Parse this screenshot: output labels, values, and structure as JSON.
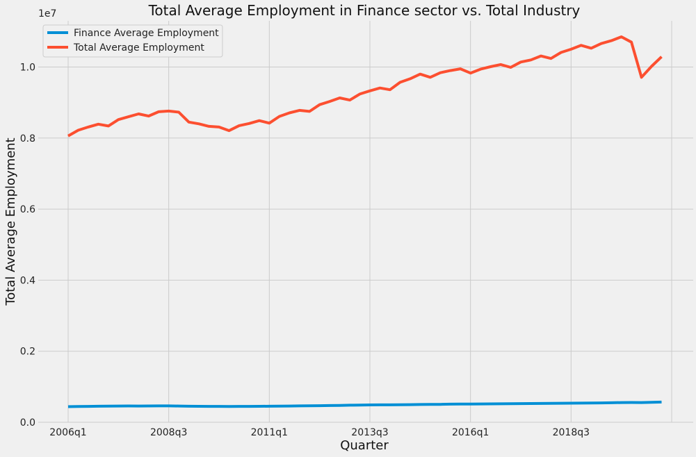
{
  "chart_data": {
    "type": "line",
    "title": "Total Average Employment in Finance sector vs. Total Industry",
    "xlabel": "Quarter",
    "ylabel": "Total Average Employment",
    "y_offset_label": "1e7",
    "ylim": [
      0,
      11300000
    ],
    "yticks": [
      0.0,
      0.2,
      0.4,
      0.6,
      0.8,
      1.0
    ],
    "y_scale_factor": 10000000,
    "grid": true,
    "legend_position": "top-left",
    "xticks": [
      {
        "quarter": "2006q1"
      },
      {
        "quarter": "2008q3"
      },
      {
        "quarter": "2011q1"
      },
      {
        "quarter": "2013q3"
      },
      {
        "quarter": "2016q1"
      },
      {
        "quarter": "2018q3"
      },
      {
        "quarter": "2021q1",
        "label": ""
      }
    ],
    "x": [
      "2006q1",
      "2006q2",
      "2006q3",
      "2006q4",
      "2007q1",
      "2007q2",
      "2007q3",
      "2007q4",
      "2008q1",
      "2008q2",
      "2008q3",
      "2008q4",
      "2009q1",
      "2009q2",
      "2009q3",
      "2009q4",
      "2010q1",
      "2010q2",
      "2010q3",
      "2010q4",
      "2011q1",
      "2011q2",
      "2011q3",
      "2011q4",
      "2012q1",
      "2012q2",
      "2012q3",
      "2012q4",
      "2013q1",
      "2013q2",
      "2013q3",
      "2013q4",
      "2014q1",
      "2014q2",
      "2014q3",
      "2014q4",
      "2015q1",
      "2015q2",
      "2015q3",
      "2015q4",
      "2016q1",
      "2016q2",
      "2016q3",
      "2016q4",
      "2017q1",
      "2017q2",
      "2017q3",
      "2017q4",
      "2018q1",
      "2018q2",
      "2018q3",
      "2018q4",
      "2019q1",
      "2019q2",
      "2019q3",
      "2019q4",
      "2020q1",
      "2020q2",
      "2020q3",
      "2020q4"
    ],
    "series": [
      {
        "name": "Finance Average Employment",
        "color": "#008fd5",
        "values": [
          440000,
          445000,
          448000,
          452000,
          455000,
          458000,
          460000,
          458000,
          460000,
          461000,
          462000,
          458000,
          452000,
          450000,
          448000,
          447000,
          446000,
          447000,
          448000,
          450000,
          452000,
          455000,
          458000,
          461000,
          464000,
          468000,
          472000,
          476000,
          480000,
          484000,
          488000,
          490000,
          490000,
          492000,
          496000,
          500000,
          502000,
          505000,
          510000,
          512000,
          514000,
          516000,
          518000,
          520000,
          522000,
          525000,
          528000,
          530000,
          532000,
          535000,
          538000,
          540000,
          542000,
          545000,
          550000,
          555000,
          558000,
          556000,
          562000,
          568000
        ]
      },
      {
        "name": "Total Average Employment",
        "color": "#fc4f30",
        "values": [
          8060000,
          8220000,
          8310000,
          8390000,
          8340000,
          8520000,
          8600000,
          8680000,
          8620000,
          8740000,
          8760000,
          8730000,
          8450000,
          8400000,
          8330000,
          8310000,
          8210000,
          8350000,
          8410000,
          8490000,
          8420000,
          8610000,
          8710000,
          8780000,
          8750000,
          8940000,
          9030000,
          9130000,
          9070000,
          9240000,
          9330000,
          9410000,
          9360000,
          9570000,
          9670000,
          9800000,
          9710000,
          9840000,
          9900000,
          9950000,
          9830000,
          9940000,
          10010000,
          10070000,
          9990000,
          10140000,
          10200000,
          10310000,
          10240000,
          10410000,
          10500000,
          10610000,
          10530000,
          10660000,
          10740000,
          10850000,
          10700000,
          9710000,
          10020000,
          10290000
        ]
      }
    ]
  }
}
